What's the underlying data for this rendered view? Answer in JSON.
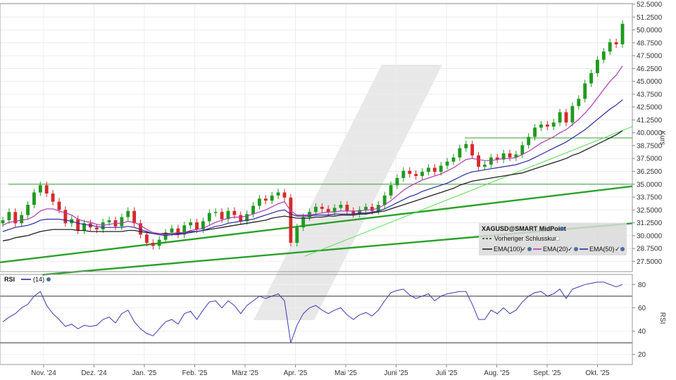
{
  "chart_data": [
    {
      "type": "candlestick",
      "title": "",
      "ylabel": "Kurs",
      "ylim": [
        26.5,
        52.5
      ],
      "yticks": [
        "52.5000",
        "51.2500",
        "50.0000",
        "48.7500",
        "47.5000",
        "46.2500",
        "45.0000",
        "43.7500",
        "42.5000",
        "41.2500",
        "40.0000",
        "38.7500",
        "37.5000",
        "36.2500",
        "35.0000",
        "33.7500",
        "32.5000",
        "31.2500",
        "30.0000",
        "28.7500",
        "27.5000"
      ],
      "x_ticks": [
        "Nov. '24",
        "Dez. '24",
        "Jan. '25",
        "Feb. '25",
        "März '25",
        "Apr. '25",
        "Mai '25",
        "Juni '25",
        "Juli '25",
        "Aug. '25",
        "Sept. '25",
        "Okt. '25"
      ],
      "grid": true,
      "legend": {
        "title": "XAGUSD@SMART MidPoint",
        "prev_close": "Vorheriger Schlusskurs",
        "entries": [
          {
            "name": "EMA(100)",
            "color": "#222222"
          },
          {
            "name": "EMA(20)",
            "color": "#b03ab0"
          },
          {
            "name": "EMA(50)",
            "color": "#2a2aa0"
          }
        ]
      },
      "close_series": [
        31.5,
        32.3,
        31.2,
        32.0,
        33.0,
        34.2,
        34.9,
        34.1,
        33.3,
        32.5,
        31.2,
        31.6,
        30.5,
        31.2,
        30.8,
        30.6,
        31.3,
        31.5,
        30.9,
        31.8,
        32.4,
        31.2,
        30.1,
        29.3,
        29.0,
        29.6,
        30.3,
        30.7,
        30.1,
        31.0,
        31.3,
        30.6,
        31.4,
        32.2,
        32.3,
        31.6,
        32.4,
        32.0,
        31.4,
        32.1,
        32.9,
        33.6,
        33.4,
        33.9,
        34.2,
        33.7,
        29.3,
        30.8,
        31.8,
        32.3,
        32.8,
        32.6,
        32.3,
        32.7,
        33.0,
        32.4,
        32.1,
        32.5,
        32.8,
        32.4,
        33.0,
        33.9,
        34.9,
        35.6,
        36.3,
        36.0,
        35.8,
        36.2,
        36.6,
        36.2,
        36.8,
        37.2,
        37.6,
        38.5,
        38.9,
        37.8,
        36.7,
        36.9,
        37.6,
        37.4,
        38.0,
        37.6,
        37.9,
        38.8,
        39.6,
        40.5,
        40.8,
        40.6,
        41.0,
        42.0,
        41.0,
        42.6,
        43.3,
        44.8,
        45.8,
        47.1,
        47.9,
        48.8,
        48.6,
        50.6
      ],
      "ema20": [
        31.0,
        31.3,
        31.4,
        31.5,
        31.6,
        31.9,
        32.4,
        32.6,
        32.6,
        32.4,
        32.2,
        32.0,
        31.6,
        31.4,
        31.3,
        31.1,
        31.0,
        31.1,
        31.2,
        31.2,
        31.4,
        31.3,
        31.0,
        30.6,
        30.3,
        30.2,
        30.1,
        30.2,
        30.3,
        30.3,
        30.5,
        30.6,
        30.7,
        31.0,
        31.3,
        31.5,
        31.7,
        31.8,
        31.8,
        31.9,
        32.1,
        32.3,
        32.5,
        32.8,
        33.1,
        33.3,
        32.4,
        32.0,
        32.0,
        32.0,
        32.1,
        32.2,
        32.3,
        32.3,
        32.4,
        32.4,
        32.4,
        32.4,
        32.5,
        32.5,
        32.7,
        33.0,
        33.4,
        33.9,
        34.4,
        34.8,
        35.1,
        35.4,
        35.6,
        35.8,
        36.0,
        36.3,
        36.6,
        37.0,
        37.4,
        37.5,
        37.4,
        37.3,
        37.3,
        37.4,
        37.5,
        37.5,
        37.6,
        37.9,
        38.2,
        38.6,
        39.0,
        39.3,
        39.6,
        40.0,
        40.3,
        40.8,
        41.3,
        41.9,
        42.6,
        43.4,
        44.2,
        45.0,
        45.6,
        46.5
      ],
      "ema50": [
        30.4,
        30.6,
        30.8,
        30.9,
        31.0,
        31.2,
        31.5,
        31.6,
        31.6,
        31.6,
        31.5,
        31.4,
        31.2,
        31.1,
        31.0,
        30.9,
        30.8,
        30.8,
        30.8,
        30.8,
        30.9,
        30.8,
        30.6,
        30.4,
        30.2,
        30.1,
        30.0,
        30.1,
        30.1,
        30.2,
        30.3,
        30.4,
        30.5,
        30.7,
        30.9,
        31.0,
        31.2,
        31.3,
        31.4,
        31.5,
        31.6,
        31.8,
        32.0,
        32.2,
        32.4,
        32.5,
        32.1,
        31.9,
        31.9,
        31.9,
        32.0,
        32.0,
        32.0,
        32.1,
        32.1,
        32.1,
        32.1,
        32.2,
        32.2,
        32.3,
        32.4,
        32.6,
        32.9,
        33.2,
        33.5,
        33.8,
        34.0,
        34.3,
        34.5,
        34.7,
        34.9,
        35.1,
        35.4,
        35.7,
        36.0,
        36.2,
        36.3,
        36.4,
        36.5,
        36.6,
        36.7,
        36.8,
        36.9,
        37.1,
        37.3,
        37.6,
        37.9,
        38.2,
        38.5,
        38.8,
        39.1,
        39.5,
        39.9,
        40.3,
        40.8,
        41.3,
        41.8,
        42.3,
        42.7,
        43.2
      ],
      "ema100": [
        29.5,
        29.6,
        29.8,
        29.9,
        30.0,
        30.2,
        30.4,
        30.5,
        30.6,
        30.6,
        30.6,
        30.6,
        30.5,
        30.5,
        30.4,
        30.4,
        30.4,
        30.4,
        30.4,
        30.4,
        30.5,
        30.5,
        30.4,
        30.3,
        30.2,
        30.2,
        30.2,
        30.2,
        30.2,
        30.3,
        30.4,
        30.4,
        30.5,
        30.6,
        30.7,
        30.8,
        30.9,
        31.0,
        31.1,
        31.2,
        31.3,
        31.4,
        31.5,
        31.7,
        31.8,
        31.9,
        31.8,
        31.7,
        31.7,
        31.7,
        31.8,
        31.8,
        31.9,
        31.9,
        32.0,
        32.0,
        32.0,
        32.1,
        32.1,
        32.2,
        32.3,
        32.4,
        32.6,
        32.8,
        33.0,
        33.2,
        33.4,
        33.6,
        33.8,
        34.0,
        34.2,
        34.4,
        34.6,
        34.9,
        35.1,
        35.3,
        35.4,
        35.5,
        35.6,
        35.7,
        35.8,
        35.9,
        36.0,
        36.1,
        36.3,
        36.5,
        36.7,
        36.9,
        37.1,
        37.3,
        37.5,
        37.8,
        38.0,
        38.3,
        38.6,
        38.9,
        39.2,
        39.5,
        39.8,
        40.2
      ],
      "horizontal_lines": [
        35.0,
        39.5
      ],
      "trend_lines": [
        {
          "from": [
            "Okt. '24",
            27.4
          ],
          "to": [
            "Okt. '25",
            34.8
          ]
        },
        {
          "from": [
            "Okt. '24",
            26.2
          ],
          "to": [
            "Okt. '25",
            31.2
          ]
        },
        {
          "from": [
            "Apr. '25",
            28.0
          ],
          "to": [
            "Okt. '25",
            40.6
          ]
        }
      ]
    },
    {
      "type": "line",
      "title": "RSI",
      "legend": [
        {
          "name": "(14)",
          "color": "#2a2aa0"
        }
      ],
      "ylabel": "RSI",
      "ylim": [
        12,
        88
      ],
      "yticks": [
        "80",
        "60",
        "40",
        "20"
      ],
      "levels": [
        70,
        30
      ],
      "values": [
        48,
        52,
        55,
        60,
        63,
        70,
        74,
        62,
        55,
        50,
        44,
        46,
        42,
        45,
        44,
        45,
        50,
        52,
        47,
        55,
        58,
        48,
        42,
        38,
        36,
        42,
        48,
        50,
        46,
        55,
        57,
        50,
        58,
        65,
        66,
        60,
        66,
        62,
        55,
        62,
        66,
        70,
        68,
        70,
        72,
        66,
        30,
        45,
        55,
        60,
        62,
        58,
        55,
        58,
        60,
        54,
        50,
        54,
        56,
        53,
        58,
        66,
        73,
        75,
        76,
        71,
        68,
        70,
        72,
        66,
        70,
        72,
        73,
        74,
        74,
        63,
        50,
        50,
        58,
        55,
        60,
        55,
        58,
        65,
        70,
        73,
        74,
        70,
        72,
        76,
        68,
        76,
        78,
        80,
        81,
        82,
        82,
        80,
        78,
        80
      ]
    }
  ]
}
